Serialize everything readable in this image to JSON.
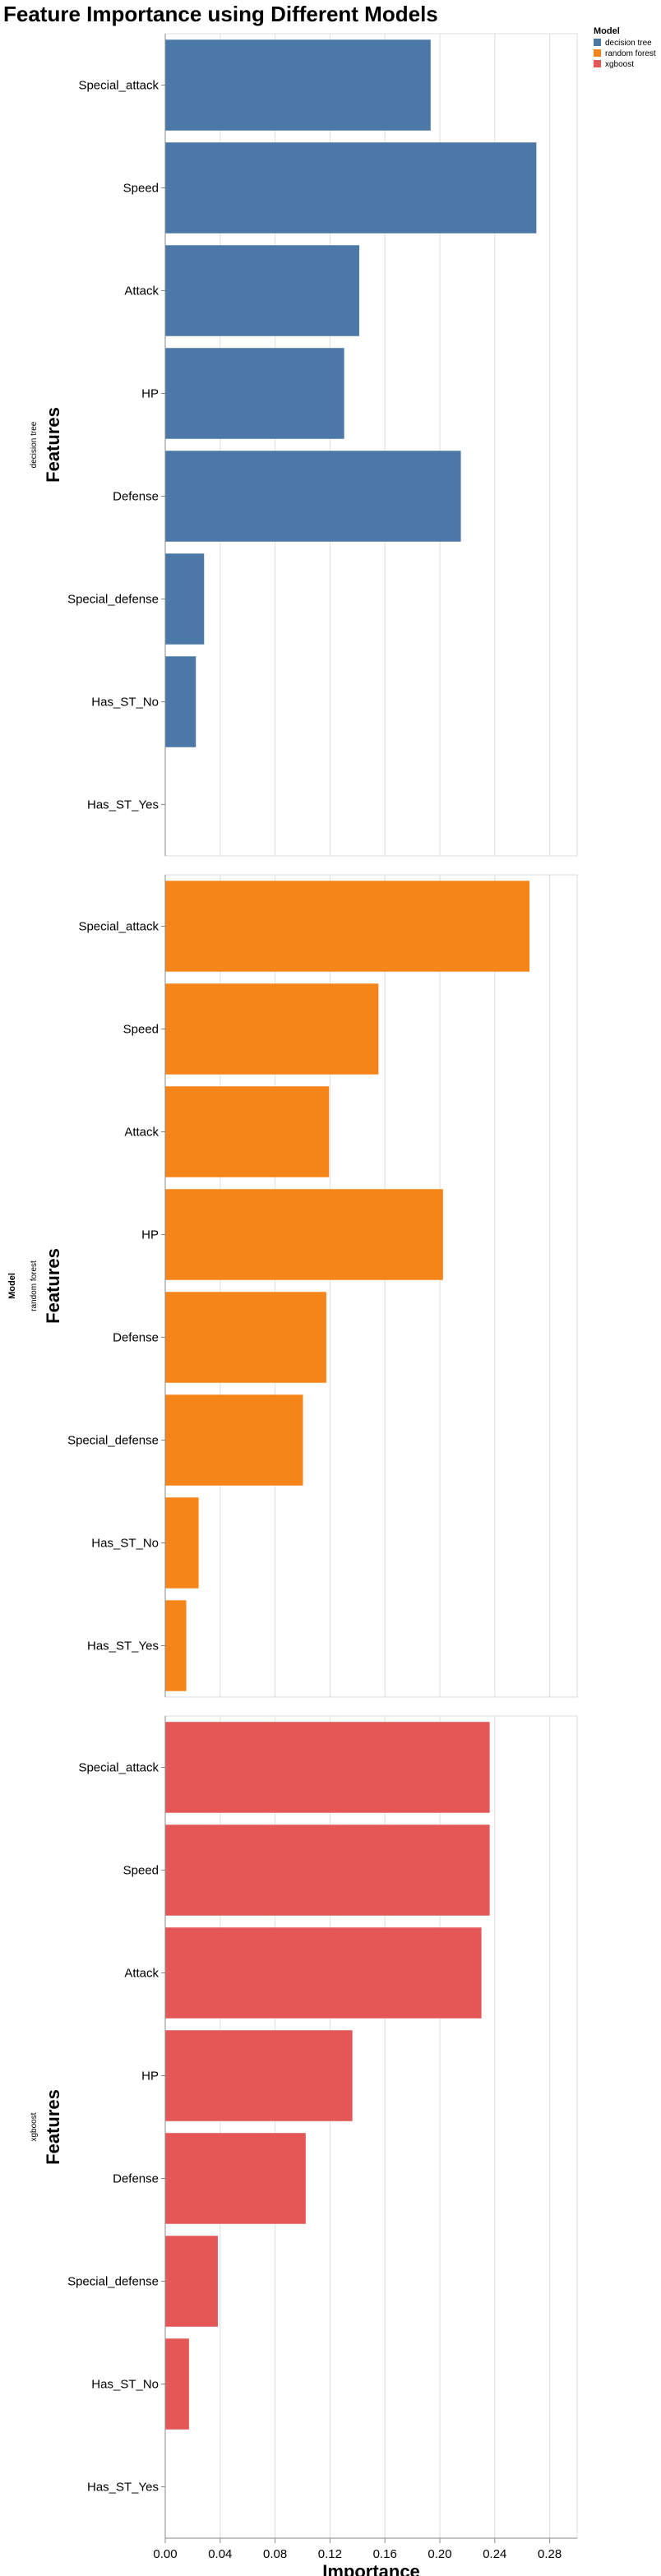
{
  "title": "Feature Importance using Different Models",
  "legend": {
    "title": "Model",
    "placement": "top-right",
    "items": [
      {
        "label": "decision tree",
        "color": "#4c78a8"
      },
      {
        "label": "random forest",
        "color": "#f58518"
      },
      {
        "label": "xgboost",
        "color": "#e45756"
      }
    ]
  },
  "row_header": "Model",
  "chart_data": {
    "type": "bar",
    "orientation": "horizontal",
    "title": "Feature Importance using Different Models",
    "xlabel": "Importance",
    "ylabel": "Features",
    "xlim": [
      0,
      0.3
    ],
    "xticks": [
      0.0,
      0.04,
      0.08,
      0.12,
      0.16,
      0.2,
      0.24,
      0.28
    ],
    "xtick_labels": [
      "0.00",
      "0.04",
      "0.08",
      "0.12",
      "0.16",
      "0.20",
      "0.24",
      "0.28"
    ],
    "grid": "x",
    "facet": "row",
    "categories": [
      "Special_attack",
      "Speed",
      "Attack",
      "HP",
      "Defense",
      "Special_defense",
      "Has_ST_No",
      "Has_ST_Yes"
    ],
    "series": [
      {
        "name": "decision tree",
        "color": "#4c78a8",
        "values": [
          0.193,
          0.27,
          0.141,
          0.13,
          0.215,
          0.028,
          0.022,
          0.0
        ]
      },
      {
        "name": "random forest",
        "color": "#f58518",
        "values": [
          0.265,
          0.155,
          0.119,
          0.202,
          0.117,
          0.1,
          0.024,
          0.015
        ]
      },
      {
        "name": "xgboost",
        "color": "#e45756",
        "values": [
          0.236,
          0.236,
          0.23,
          0.136,
          0.102,
          0.038,
          0.017,
          0.0
        ]
      }
    ]
  }
}
